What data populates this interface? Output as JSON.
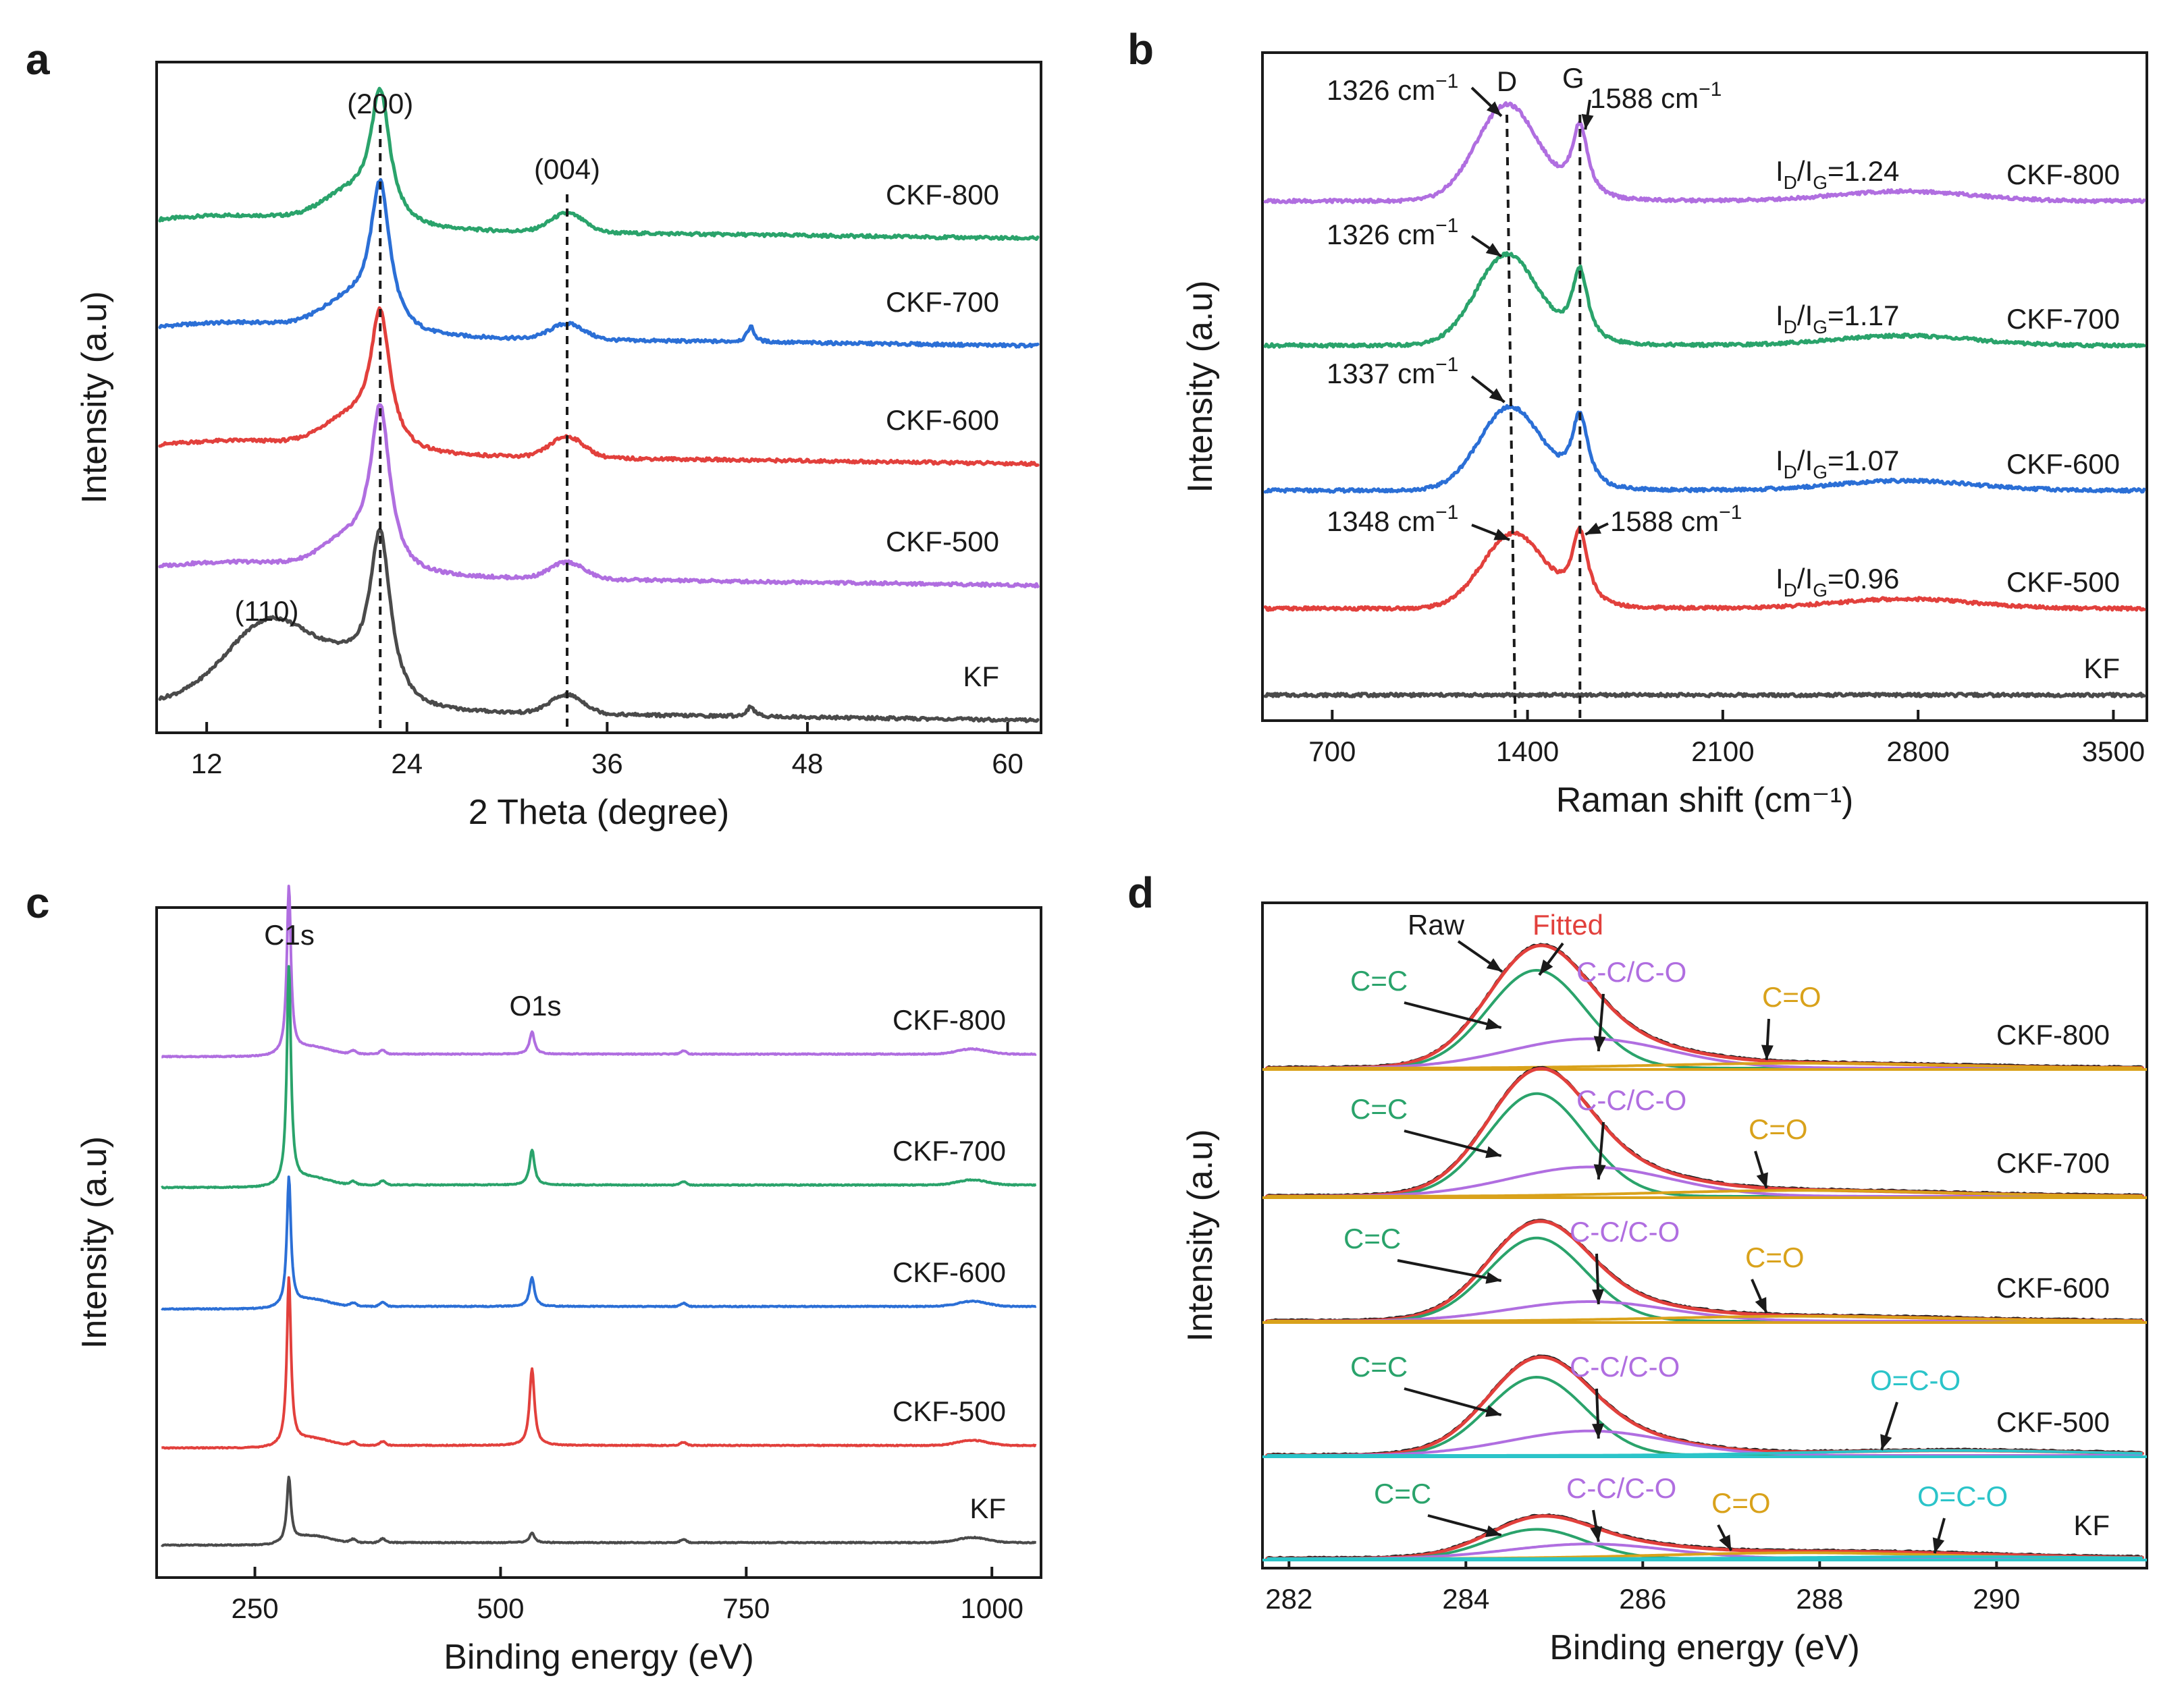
{
  "chart_data": [
    {
      "panel": "a",
      "type": "line",
      "xlabel": "2 Theta (degree)",
      "ylabel": "Intensity (a.u)",
      "xlim": [
        9,
        62
      ],
      "xticks": [
        12,
        24,
        36,
        48,
        60
      ],
      "series": [
        {
          "name": "CKF-800",
          "color": "#2aa36b",
          "offset": 4,
          "peaks": [
            {
              "x": 22.4,
              "h": 1.2,
              "w": 0.7
            },
            {
              "x": 33.6,
              "h": 0.18,
              "w": 1.0
            }
          ]
        },
        {
          "name": "CKF-700",
          "color": "#2b6fd6",
          "offset": 3,
          "peaks": [
            {
              "x": 22.4,
              "h": 1.35,
              "w": 0.7
            },
            {
              "x": 33.6,
              "h": 0.15,
              "w": 1.0
            },
            {
              "x": 44.6,
              "h": 0.15,
              "w": 0.25
            }
          ]
        },
        {
          "name": "CKF-600",
          "color": "#e2403c",
          "offset": 2,
          "peaks": [
            {
              "x": 22.4,
              "h": 1.25,
              "w": 0.7
            },
            {
              "x": 33.6,
              "h": 0.2,
              "w": 1.0
            }
          ]
        },
        {
          "name": "CKF-500",
          "color": "#b06ee0",
          "offset": 1,
          "peaks": [
            {
              "x": 22.4,
              "h": 1.5,
              "w": 0.7
            },
            {
              "x": 33.6,
              "h": 0.16,
              "w": 1.0
            }
          ]
        },
        {
          "name": "KF",
          "color": "#4a4a4a",
          "offset": 0,
          "peaks": [
            {
              "x": 16.0,
              "h": 0.75,
              "w": 2.6
            },
            {
              "x": 22.4,
              "h": 1.55,
              "w": 0.75
            },
            {
              "x": 33.6,
              "h": 0.18,
              "w": 1.0
            },
            {
              "x": 44.6,
              "h": 0.1,
              "w": 0.25
            }
          ]
        }
      ],
      "annotations": [
        {
          "text": "(200)",
          "x": 22.4
        },
        {
          "text": "(004)",
          "x": 33.6
        },
        {
          "text": "(110)",
          "x": 16.0
        }
      ]
    },
    {
      "panel": "b",
      "type": "line",
      "xlabel": "Raman shift (cm⁻¹)",
      "ylabel": "Intensity (a.u)",
      "xlim": [
        450,
        3620
      ],
      "xticks": [
        700,
        1400,
        2100,
        2800,
        3500
      ],
      "series": [
        {
          "name": "CKF-800",
          "color": "#b06ee0",
          "ratio_label": "ID/IG=1.24",
          "D": 1326,
          "G": 1588,
          "ID": 1.24
        },
        {
          "name": "CKF-700",
          "color": "#2aa36b",
          "ratio_label": "ID/IG=1.17",
          "D": 1326,
          "G": 1588,
          "ID": 1.17
        },
        {
          "name": "CKF-600",
          "color": "#2b6fd6",
          "ratio_label": "ID/IG=1.07",
          "D": 1337,
          "G": 1588,
          "ID": 1.07
        },
        {
          "name": "CKF-500",
          "color": "#e2403c",
          "ratio_label": "ID/IG=0.96",
          "D": 1348,
          "G": 1588,
          "ID": 0.96
        },
        {
          "name": "KF",
          "color": "#4a4a4a",
          "ratio_label": "",
          "D": null,
          "G": null,
          "ID": 0
        }
      ],
      "annotations": [
        {
          "text": "D",
          "x": 1348
        },
        {
          "text": "G",
          "x": 1588
        },
        {
          "text": "1326 cm",
          "sup": "−1"
        },
        {
          "text": "1588 cm",
          "sup": "−1"
        },
        {
          "text": "1326 cm",
          "sup": "−1"
        },
        {
          "text": "1337 cm",
          "sup": "−1"
        },
        {
          "text": "1348 cm",
          "sup": "−1"
        },
        {
          "text": "1588 cm",
          "sup": "−1"
        }
      ]
    },
    {
      "panel": "c",
      "type": "line",
      "xlabel": "Binding energy (eV)",
      "ylabel": "Intensity (a.u)",
      "xlim": [
        150,
        1050
      ],
      "xticks": [
        250,
        500,
        750,
        1000
      ],
      "series": [
        {
          "name": "CKF-800",
          "color": "#b06ee0",
          "c1s": 2.6,
          "o1s": 0.35
        },
        {
          "name": "CKF-700",
          "color": "#2aa36b",
          "c1s": 3.4,
          "o1s": 0.55
        },
        {
          "name": "CKF-600",
          "color": "#2b6fd6",
          "c1s": 2.0,
          "o1s": 0.45
        },
        {
          "name": "CKF-500",
          "color": "#e2403c",
          "c1s": 2.6,
          "o1s": 1.2
        },
        {
          "name": "KF",
          "color": "#4a4a4a",
          "c1s": 1.0,
          "o1s": 0.15
        }
      ],
      "annotations": [
        {
          "text": "C1s",
          "x": 285
        },
        {
          "text": "O1s",
          "x": 532
        }
      ]
    },
    {
      "panel": "d",
      "type": "line",
      "xlabel": "Binding energy (eV)",
      "ylabel": "Intensity (a.u)",
      "xlim": [
        281.7,
        291.7
      ],
      "xticks": [
        282,
        284,
        286,
        288,
        290
      ],
      "component_colors": {
        "raw": "#1a1a1a",
        "fitted": "#e2403c",
        "C=C": "#2aa36b",
        "C-C/C-O": "#b06ee0",
        "C=O": "#d9a21b",
        "O=C-O": "#2bc4c9"
      },
      "series": [
        {
          "name": "CKF-800",
          "cc": 1.0,
          "cco": 0.3,
          "co": 0.05,
          "oco": 0
        },
        {
          "name": "CKF-700",
          "cc": 1.05,
          "cco": 0.3,
          "co": 0.06,
          "oco": 0
        },
        {
          "name": "CKF-600",
          "cc": 0.85,
          "cco": 0.2,
          "co": 0.05,
          "oco": 0
        },
        {
          "name": "CKF-500",
          "cc": 0.8,
          "cco": 0.25,
          "co": 0,
          "oco": 0.05
        },
        {
          "name": "KF",
          "cc": 0.3,
          "cco": 0.15,
          "co": 0.06,
          "oco": 0.02
        }
      ],
      "annotations": {
        "raw": "Raw",
        "fitted": "Fitted",
        "cc": "C=C",
        "cco": "C-C/C-O",
        "co": "C=O",
        "oco": "O=C-O"
      }
    }
  ],
  "panel_labels": [
    "a",
    "b",
    "c",
    "d"
  ]
}
